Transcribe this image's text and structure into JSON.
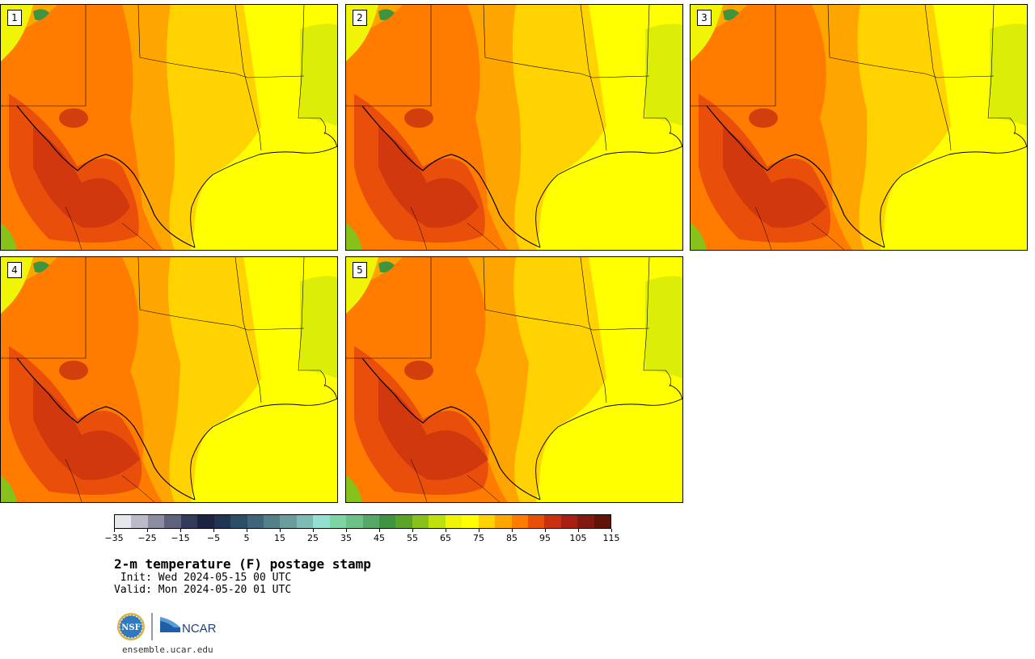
{
  "panels": [
    {
      "label": "1",
      "variant": 0
    },
    {
      "label": "2",
      "variant": 1
    },
    {
      "label": "3",
      "variant": 2
    },
    {
      "label": "4",
      "variant": 3
    },
    {
      "label": "5",
      "variant": 4
    }
  ],
  "colorbar": {
    "colors": [
      "#e6e7ec",
      "#babac9",
      "#8b8da3",
      "#5e627d",
      "#333a5a",
      "#1b2440",
      "#1f3552",
      "#2d4d66",
      "#3e6579",
      "#53808a",
      "#6a9e9e",
      "#7fbbb5",
      "#93e0d0",
      "#7fd4a4",
      "#6cc088",
      "#57a866",
      "#3f9440",
      "#5aa428",
      "#86c219",
      "#bfe00d",
      "#f0f406",
      "#ffff00",
      "#ffd200",
      "#ffa500",
      "#ff7c00",
      "#e94f0a",
      "#c8300f",
      "#a71f11",
      "#821910",
      "#5e1409"
    ],
    "tick_labels": [
      "−35",
      "−25",
      "−15",
      "−5",
      "5",
      "15",
      "25",
      "35",
      "45",
      "55",
      "65",
      "75",
      "85",
      "95",
      "105",
      "115"
    ]
  },
  "title": "2-m temperature (F) postage stamp",
  "init_line": " Init: Wed 2024-05-15 00 UTC",
  "valid_line": "Valid: Mon 2024-05-20 01 UTC",
  "logos": {
    "nsf": "NSF",
    "ncar": "NCAR"
  },
  "footer_url": "ensemble.ucar.edu"
}
